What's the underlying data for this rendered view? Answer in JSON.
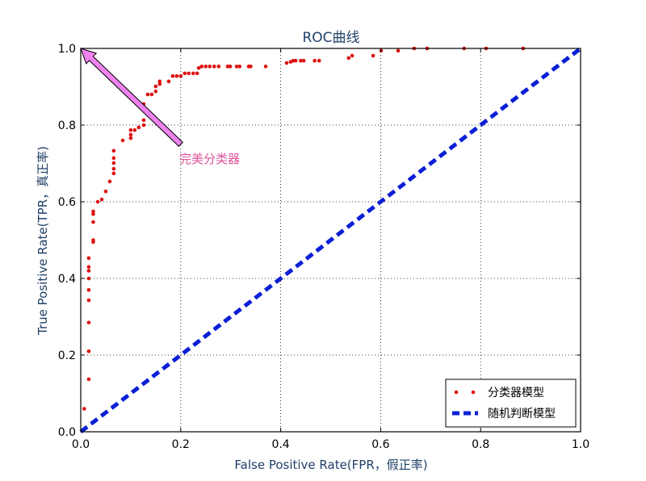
{
  "chart_data": {
    "type": "scatter",
    "title": "ROC曲线",
    "xlabel": "False Positive Rate(FPR，假正率)",
    "ylabel": "True Positive Rate(TPR，真正率)",
    "xlim": [
      0,
      1
    ],
    "ylim": [
      0,
      1
    ],
    "xticks": [
      "0.0",
      "0.2",
      "0.4",
      "0.6",
      "0.8",
      "1.0"
    ],
    "yticks": [
      "0.0",
      "0.2",
      "0.4",
      "0.6",
      "0.8",
      "1.0"
    ],
    "grid": true,
    "legend_position": "bottom-right",
    "annotation": {
      "text": "完美分类器",
      "xy": [
        0,
        1
      ],
      "xytext": [
        0.2,
        0.75
      ],
      "color": "#e0529c",
      "arrow_color": "#ee82ee"
    },
    "series": [
      {
        "name": "分类器模型",
        "style": "dots",
        "color": "#dd1111",
        "points": [
          [
            0.007,
            0.06
          ],
          [
            0.016,
            0.137
          ],
          [
            0.016,
            0.21
          ],
          [
            0.016,
            0.285
          ],
          [
            0.016,
            0.343
          ],
          [
            0.016,
            0.37
          ],
          [
            0.016,
            0.4
          ],
          [
            0.016,
            0.42
          ],
          [
            0.016,
            0.43
          ],
          [
            0.016,
            0.453
          ],
          [
            0.025,
            0.495
          ],
          [
            0.025,
            0.5
          ],
          [
            0.025,
            0.547
          ],
          [
            0.025,
            0.568
          ],
          [
            0.025,
            0.575
          ],
          [
            0.034,
            0.6
          ],
          [
            0.042,
            0.606
          ],
          [
            0.05,
            0.627
          ],
          [
            0.058,
            0.653
          ],
          [
            0.066,
            0.674
          ],
          [
            0.066,
            0.686
          ],
          [
            0.066,
            0.701
          ],
          [
            0.066,
            0.714
          ],
          [
            0.066,
            0.733
          ],
          [
            0.084,
            0.76
          ],
          [
            0.1,
            0.766
          ],
          [
            0.1,
            0.775
          ],
          [
            0.1,
            0.787
          ],
          [
            0.108,
            0.787
          ],
          [
            0.116,
            0.794
          ],
          [
            0.126,
            0.8
          ],
          [
            0.126,
            0.813
          ],
          [
            0.126,
            0.84
          ],
          [
            0.126,
            0.855
          ],
          [
            0.134,
            0.88
          ],
          [
            0.142,
            0.88
          ],
          [
            0.15,
            0.888
          ],
          [
            0.15,
            0.901
          ],
          [
            0.158,
            0.907
          ],
          [
            0.158,
            0.914
          ],
          [
            0.176,
            0.914
          ],
          [
            0.184,
            0.928
          ],
          [
            0.192,
            0.928
          ],
          [
            0.2,
            0.928
          ],
          [
            0.208,
            0.935
          ],
          [
            0.216,
            0.935
          ],
          [
            0.225,
            0.935
          ],
          [
            0.233,
            0.935
          ],
          [
            0.236,
            0.949
          ],
          [
            0.242,
            0.953
          ],
          [
            0.25,
            0.953
          ],
          [
            0.258,
            0.953
          ],
          [
            0.267,
            0.953
          ],
          [
            0.276,
            0.953
          ],
          [
            0.294,
            0.953
          ],
          [
            0.299,
            0.953
          ],
          [
            0.312,
            0.953
          ],
          [
            0.318,
            0.953
          ],
          [
            0.336,
            0.953
          ],
          [
            0.34,
            0.953
          ],
          [
            0.37,
            0.953
          ],
          [
            0.412,
            0.962
          ],
          [
            0.42,
            0.965
          ],
          [
            0.425,
            0.968
          ],
          [
            0.43,
            0.968
          ],
          [
            0.44,
            0.968
          ],
          [
            0.446,
            0.968
          ],
          [
            0.468,
            0.968
          ],
          [
            0.477,
            0.968
          ],
          [
            0.536,
            0.975
          ],
          [
            0.543,
            0.981
          ],
          [
            0.585,
            0.981
          ],
          [
            0.601,
            0.994
          ],
          [
            0.635,
            0.994
          ],
          [
            0.667,
            1.0
          ],
          [
            0.693,
            1.0
          ],
          [
            0.767,
            1.0
          ],
          [
            0.811,
            1.0
          ],
          [
            0.885,
            1.0
          ]
        ]
      },
      {
        "name": "随机判断模型",
        "style": "dashed-line",
        "color": "#0b1fd6",
        "points": [
          [
            0,
            0
          ],
          [
            1,
            1
          ]
        ]
      }
    ]
  }
}
